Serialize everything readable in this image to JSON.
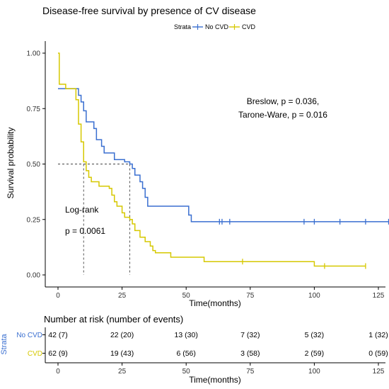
{
  "chart_data": [
    {
      "type": "line",
      "title": "Disease-free survival by presence of CV disease",
      "legend": {
        "title": "Strata",
        "position": "top",
        "entries": [
          {
            "name": "No CVD",
            "color": "#3a6fd0"
          },
          {
            "name": "CVD",
            "color": "#d6c800"
          }
        ]
      },
      "xlabel": "Time(months)",
      "ylabel": "Survival probability",
      "xlim": [
        0,
        130
      ],
      "ylim": [
        0,
        1.0
      ],
      "xticks": [
        "0",
        "25",
        "50",
        "75",
        "100",
        "125"
      ],
      "yticks": [
        "0.00",
        "0.25",
        "0.50",
        "0.75",
        "1.00"
      ],
      "grid": false,
      "series": [
        {
          "name": "No CVD",
          "color": "#3a6fd0",
          "steps": [
            [
              0,
              0.84
            ],
            [
              7,
              0.84
            ],
            [
              8,
              0.81
            ],
            [
              9,
              0.78
            ],
            [
              10,
              0.74
            ],
            [
              11,
              0.69
            ],
            [
              13,
              0.69
            ],
            [
              14,
              0.66
            ],
            [
              15,
              0.61
            ],
            [
              16,
              0.61
            ],
            [
              17,
              0.58
            ],
            [
              18,
              0.55
            ],
            [
              21,
              0.55
            ],
            [
              22,
              0.52
            ],
            [
              25,
              0.52
            ],
            [
              26,
              0.51
            ],
            [
              28,
              0.5
            ],
            [
              29,
              0.48
            ],
            [
              30,
              0.45
            ],
            [
              32,
              0.42
            ],
            [
              33,
              0.39
            ],
            [
              34,
              0.35
            ],
            [
              35,
              0.31
            ],
            [
              50,
              0.31
            ],
            [
              51,
              0.27
            ],
            [
              52,
              0.24
            ],
            [
              129,
              0.24
            ]
          ],
          "censored": [
            63,
            64,
            67,
            96,
            100,
            110,
            120,
            129
          ],
          "censored_y": 0.24
        },
        {
          "name": "CVD",
          "color": "#d6c800",
          "steps": [
            [
              0,
              1.0
            ],
            [
              0.5,
              0.86
            ],
            [
              2,
              0.86
            ],
            [
              3,
              0.84
            ],
            [
              6,
              0.84
            ],
            [
              7,
              0.79
            ],
            [
              8,
              0.68
            ],
            [
              9,
              0.6
            ],
            [
              10,
              0.51
            ],
            [
              11,
              0.47
            ],
            [
              12,
              0.44
            ],
            [
              13,
              0.42
            ],
            [
              16,
              0.4
            ],
            [
              20,
              0.39
            ],
            [
              21,
              0.36
            ],
            [
              22,
              0.33
            ],
            [
              23,
              0.31
            ],
            [
              25,
              0.28
            ],
            [
              26,
              0.26
            ],
            [
              28,
              0.25
            ],
            [
              29,
              0.23
            ],
            [
              30,
              0.2
            ],
            [
              32,
              0.17
            ],
            [
              34,
              0.15
            ],
            [
              36,
              0.13
            ],
            [
              37,
              0.11
            ],
            [
              38,
              0.1
            ],
            [
              43,
              0.1
            ],
            [
              44,
              0.08
            ],
            [
              54,
              0.08
            ],
            [
              57,
              0.06
            ],
            [
              99,
              0.06
            ],
            [
              100,
              0.04
            ],
            [
              120,
              0.04
            ]
          ],
          "censored": [
            72,
            104,
            120
          ],
          "censored_y_values": [
            0.06,
            0.04,
            0.04
          ]
        }
      ],
      "median_lines": [
        {
          "x": 10,
          "y": 0.5
        },
        {
          "x": 28,
          "y": 0.5
        }
      ],
      "annotations": {
        "breslow": "Breslow, p = 0.036,",
        "tarone": "Tarone-Ware, p = 0.016",
        "logrank": "Log-rank",
        "logrank_p": "p = 0.0061"
      }
    },
    {
      "type": "table",
      "title": "Number at risk (number of events)",
      "ylabel": "Strata",
      "xlabel": "Time(months)",
      "xticks": [
        "0",
        "25",
        "50",
        "75",
        "100",
        "125"
      ],
      "rows": [
        {
          "name": "No CVD",
          "color": "#3a6fd0",
          "cells": [
            "42 (7)",
            "22 (20)",
            "13 (30)",
            "7 (32)",
            "5 (32)",
            "1 (32)"
          ]
        },
        {
          "name": "CVD",
          "color": "#d6c800",
          "cells": [
            "62 (9)",
            "19 (43)",
            "6 (56)",
            "3 (58)",
            "2 (59)",
            "0 (59)"
          ]
        }
      ]
    }
  ]
}
